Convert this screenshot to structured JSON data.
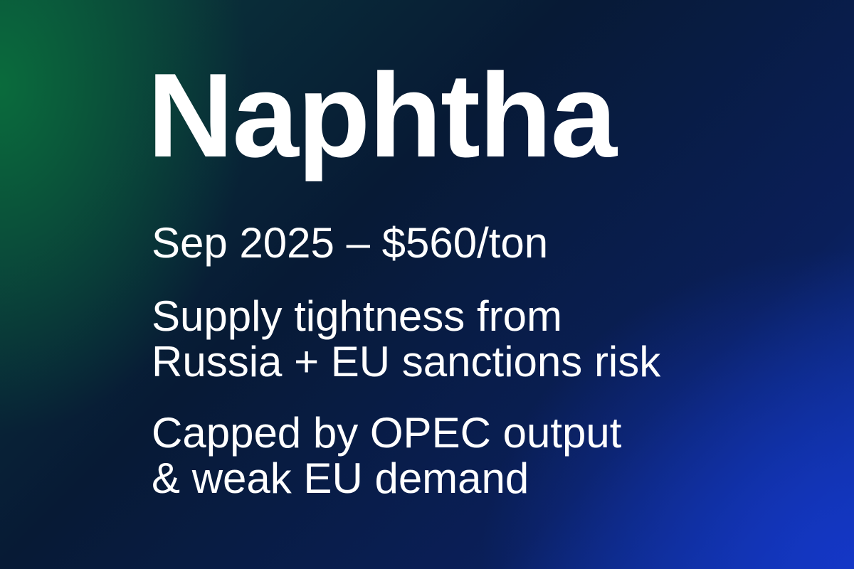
{
  "title": "Naphtha",
  "price_line": "Sep 2025 – $560/ton",
  "drivers": [
    "Supply tightness from",
    "Russia + EU sanctions risk"
  ],
  "caps": [
    "Capped by OPEC output",
    "& weak EU demand"
  ],
  "colors": {
    "text": "#ffffff",
    "gradient_green": "#0a6e3c",
    "gradient_navy": "#071a35",
    "gradient_blue": "#1437c8"
  }
}
